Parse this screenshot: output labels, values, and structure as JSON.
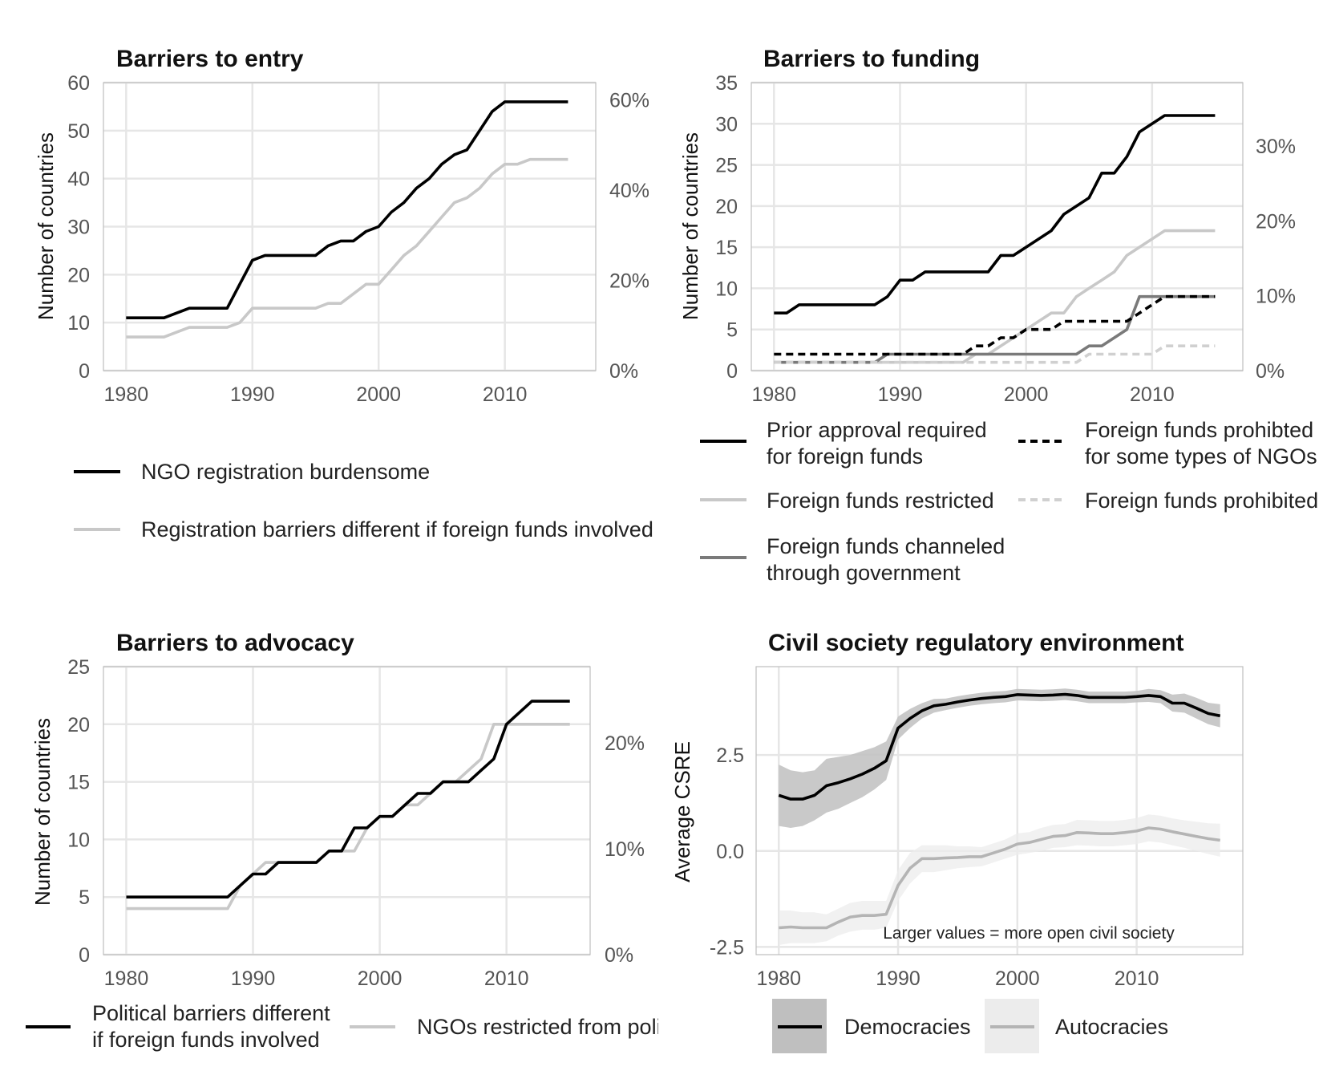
{
  "chart_data": [
    {
      "id": "entry",
      "type": "line",
      "title": "Barriers to entry",
      "ylabel": "Number of countries",
      "xlim": [
        1978.2,
        2017.2
      ],
      "ylim": [
        0,
        60
      ],
      "xticks": [
        1980,
        1990,
        2000,
        2010
      ],
      "yticks": [
        0,
        10,
        20,
        30,
        40,
        50,
        60
      ],
      "secondary_axis": {
        "labels": [
          "0%",
          "20%",
          "40%",
          "60%"
        ],
        "values": [
          0,
          18.8,
          37.6,
          56.4
        ]
      },
      "legend_position": "bottom",
      "series": [
        {
          "name": "NGO registration burdensome",
          "color": "#000000",
          "dash": "",
          "x": [
            1980,
            1981,
            1982,
            1983,
            1984,
            1985,
            1986,
            1987,
            1988,
            1989,
            1990,
            1991,
            1992,
            1993,
            1994,
            1995,
            1996,
            1997,
            1998,
            1999,
            2000,
            2001,
            2002,
            2003,
            2004,
            2005,
            2006,
            2007,
            2008,
            2009,
            2010,
            2011,
            2012,
            2013,
            2014,
            2015
          ],
          "y": [
            11,
            11,
            11,
            11,
            12,
            13,
            13,
            13,
            13,
            18,
            23,
            24,
            24,
            24,
            24,
            24,
            26,
            27,
            27,
            29,
            30,
            33,
            35,
            38,
            40,
            43,
            45,
            46,
            50,
            54,
            56,
            56,
            56,
            56,
            56,
            56
          ]
        },
        {
          "name": "Registration barriers different if foreign funds involved",
          "color": "#c8c8c8",
          "dash": "",
          "x": [
            1980,
            1981,
            1982,
            1983,
            1984,
            1985,
            1986,
            1987,
            1988,
            1989,
            1990,
            1991,
            1992,
            1993,
            1994,
            1995,
            1996,
            1997,
            1998,
            1999,
            2000,
            2001,
            2002,
            2003,
            2004,
            2005,
            2006,
            2007,
            2008,
            2009,
            2010,
            2011,
            2012,
            2013,
            2014,
            2015
          ],
          "y": [
            7,
            7,
            7,
            7,
            8,
            9,
            9,
            9,
            9,
            10,
            13,
            13,
            13,
            13,
            13,
            13,
            14,
            14,
            16,
            18,
            18,
            21,
            24,
            26,
            29,
            32,
            35,
            36,
            38,
            41,
            43,
            43,
            44,
            44,
            44,
            44
          ]
        }
      ]
    },
    {
      "id": "funding",
      "type": "line",
      "title": "Barriers to funding",
      "ylabel": "Number of countries",
      "xlim": [
        1978.2,
        2017.2
      ],
      "ylim": [
        0,
        35
      ],
      "xticks": [
        1980,
        1990,
        2000,
        2010
      ],
      "yticks": [
        0,
        5,
        10,
        15,
        20,
        25,
        30,
        35
      ],
      "secondary_axis": {
        "labels": [
          "0%",
          "10%",
          "20%",
          "30%"
        ],
        "values": [
          0,
          9.1,
          18.2,
          27.3
        ]
      },
      "legend_position": "bottom",
      "series": [
        {
          "name": "Prior approval required\nfor foreign funds",
          "color": "#000000",
          "dash": "",
          "x": [
            1980,
            1981,
            1982,
            1983,
            1984,
            1985,
            1986,
            1987,
            1988,
            1989,
            1990,
            1991,
            1992,
            1993,
            1994,
            1995,
            1996,
            1997,
            1998,
            1999,
            2000,
            2001,
            2002,
            2003,
            2004,
            2005,
            2006,
            2007,
            2008,
            2009,
            2010,
            2011,
            2012,
            2013,
            2014,
            2015
          ],
          "y": [
            7,
            7,
            8,
            8,
            8,
            8,
            8,
            8,
            8,
            9,
            11,
            11,
            12,
            12,
            12,
            12,
            12,
            12,
            14,
            14,
            15,
            16,
            17,
            19,
            20,
            21,
            24,
            24,
            26,
            29,
            30,
            31,
            31,
            31,
            31,
            31
          ]
        },
        {
          "name": "Foreign funds restricted",
          "color": "#c8c8c8",
          "dash": "",
          "x": [
            1980,
            1995,
            1996,
            1997,
            1998,
            1999,
            2000,
            2001,
            2002,
            2003,
            2004,
            2005,
            2006,
            2007,
            2008,
            2009,
            2010,
            2011,
            2012,
            2013,
            2014,
            2015
          ],
          "y": [
            1,
            1,
            2,
            2,
            3,
            4,
            5,
            6,
            7,
            7,
            9,
            10,
            11,
            12,
            14,
            15,
            16,
            17,
            17,
            17,
            17,
            17
          ]
        },
        {
          "name": "Foreign funds channeled\nthrough government",
          "color": "#7a7a7a",
          "dash": "",
          "x": [
            1980,
            1988,
            1989,
            2004,
            2005,
            2006,
            2007,
            2008,
            2009,
            2015
          ],
          "y": [
            1,
            1,
            2,
            2,
            3,
            3,
            4,
            5,
            9,
            9
          ]
        },
        {
          "name": "Foreign funds prohibted\nfor some types of NGOs",
          "color": "#000000",
          "dash": "9,6",
          "x": [
            1980,
            1995,
            1996,
            1997,
            1998,
            1999,
            2000,
            2001,
            2002,
            2003,
            2004,
            2005,
            2006,
            2007,
            2008,
            2009,
            2010,
            2011,
            2012,
            2013,
            2014,
            2015
          ],
          "y": [
            2,
            2,
            3,
            3,
            4,
            4,
            5,
            5,
            5,
            6,
            6,
            6,
            6,
            6,
            6,
            7,
            8,
            9,
            9,
            9,
            9,
            9
          ]
        },
        {
          "name": "Foreign funds prohibited",
          "color": "#d0d0d0",
          "dash": "9,6",
          "x": [
            1980,
            2004,
            2005,
            2006,
            2007,
            2008,
            2009,
            2010,
            2011,
            2012,
            2013,
            2014,
            2015
          ],
          "y": [
            1,
            1,
            2,
            2,
            2,
            2,
            2,
            2,
            3,
            3,
            3,
            3,
            3
          ]
        }
      ]
    },
    {
      "id": "advocacy",
      "type": "line",
      "title": "Barriers to advocacy",
      "ylabel": "Number of countries",
      "xlim": [
        1978.2,
        2016.6
      ],
      "ylim": [
        0,
        25
      ],
      "xticks": [
        1980,
        1990,
        2000,
        2010
      ],
      "yticks": [
        0,
        5,
        10,
        15,
        20,
        25
      ],
      "secondary_axis": {
        "labels": [
          "0%",
          "10%",
          "20%"
        ],
        "values": [
          0,
          9.2,
          18.4
        ]
      },
      "legend_position": "bottom",
      "series": [
        {
          "name": "Political barriers different\nif foreign funds involved",
          "color": "#000000",
          "dash": "",
          "x": [
            1980,
            1981,
            1982,
            1983,
            1984,
            1985,
            1986,
            1987,
            1988,
            1989,
            1990,
            1991,
            1992,
            1993,
            1994,
            1995,
            1996,
            1997,
            1998,
            1999,
            2000,
            2001,
            2002,
            2003,
            2004,
            2005,
            2006,
            2007,
            2008,
            2009,
            2010,
            2011,
            2012,
            2013,
            2014,
            2015
          ],
          "y": [
            5,
            5,
            5,
            5,
            5,
            5,
            5,
            5,
            5,
            6,
            7,
            7,
            8,
            8,
            8,
            8,
            9,
            9,
            11,
            11,
            12,
            12,
            13,
            14,
            14,
            15,
            15,
            15,
            16,
            17,
            20,
            21,
            22,
            22,
            22,
            22
          ]
        },
        {
          "name": "NGOs restricted from political activities",
          "color": "#c8c8c8",
          "dash": "",
          "x": [
            1980,
            1981,
            1982,
            1983,
            1984,
            1985,
            1986,
            1987,
            1988,
            1989,
            1990,
            1991,
            1992,
            1993,
            1994,
            1995,
            1996,
            1997,
            1998,
            1999,
            2000,
            2001,
            2002,
            2003,
            2004,
            2005,
            2006,
            2007,
            2008,
            2009,
            2010,
            2011,
            2012,
            2013,
            2014,
            2015
          ],
          "y": [
            4,
            4,
            4,
            4,
            4,
            4,
            4,
            4,
            4,
            6,
            7,
            8,
            8,
            8,
            8,
            8,
            9,
            9,
            9,
            11,
            12,
            12,
            13,
            13,
            14,
            15,
            15,
            16,
            17,
            20,
            20,
            20,
            20,
            20,
            20,
            20
          ]
        }
      ]
    },
    {
      "id": "csre",
      "type": "area",
      "title": "Civil society regulatory environment",
      "ylabel": "Average CSRE",
      "xlim": [
        1978.1,
        2018.9
      ],
      "ylim": [
        -2.7,
        4.8
      ],
      "xticks": [
        1980,
        1990,
        2000,
        2010
      ],
      "yticks": [
        -2.5,
        0.0,
        2.5
      ],
      "ytick_labels": [
        "-2.5",
        "0.0",
        "2.5"
      ],
      "annotation": "Larger values = more open civil society",
      "legend_position": "bottom",
      "series": [
        {
          "name": "Democracies",
          "color": "#000000",
          "band_color": "#bfbfbf",
          "x": [
            1980,
            1981,
            1982,
            1983,
            1984,
            1985,
            1986,
            1987,
            1988,
            1989,
            1990,
            1991,
            1992,
            1993,
            1994,
            1995,
            1996,
            1997,
            1998,
            1999,
            2000,
            2001,
            2002,
            2003,
            2004,
            2005,
            2006,
            2007,
            2008,
            2009,
            2010,
            2011,
            2012,
            2013,
            2014,
            2015,
            2016,
            2017
          ],
          "y": [
            1.45,
            1.35,
            1.35,
            1.45,
            1.7,
            1.78,
            1.88,
            2.0,
            2.15,
            2.35,
            3.2,
            3.45,
            3.65,
            3.78,
            3.82,
            3.88,
            3.93,
            3.97,
            4.0,
            4.02,
            4.07,
            4.06,
            4.05,
            4.06,
            4.08,
            4.05,
            4.0,
            4.0,
            4.0,
            4.0,
            4.02,
            4.05,
            4.02,
            3.85,
            3.85,
            3.72,
            3.58,
            3.52
          ],
          "lower": [
            0.65,
            0.6,
            0.65,
            0.8,
            1.0,
            1.1,
            1.25,
            1.4,
            1.6,
            1.85,
            2.9,
            3.2,
            3.45,
            3.6,
            3.67,
            3.73,
            3.78,
            3.82,
            3.85,
            3.87,
            3.92,
            3.91,
            3.9,
            3.91,
            3.93,
            3.9,
            3.85,
            3.85,
            3.85,
            3.85,
            3.87,
            3.88,
            3.85,
            3.63,
            3.6,
            3.45,
            3.3,
            3.22
          ],
          "upper": [
            2.25,
            2.1,
            2.05,
            2.1,
            2.4,
            2.45,
            2.5,
            2.6,
            2.7,
            2.85,
            3.5,
            3.7,
            3.85,
            3.96,
            3.97,
            4.03,
            4.08,
            4.12,
            4.15,
            4.17,
            4.22,
            4.21,
            4.2,
            4.21,
            4.23,
            4.2,
            4.15,
            4.15,
            4.15,
            4.15,
            4.17,
            4.22,
            4.19,
            4.07,
            4.1,
            3.99,
            3.86,
            3.82
          ]
        },
        {
          "name": "Autocracies",
          "color": "#b4b4b4",
          "band_color": "#ececec",
          "x": [
            1980,
            1981,
            1982,
            1983,
            1984,
            1985,
            1986,
            1987,
            1988,
            1989,
            1990,
            1991,
            1992,
            1993,
            1994,
            1995,
            1996,
            1997,
            1998,
            1999,
            2000,
            2001,
            2002,
            2003,
            2004,
            2005,
            2006,
            2007,
            2008,
            2009,
            2010,
            2011,
            2012,
            2013,
            2014,
            2015,
            2016,
            2017
          ],
          "y": [
            -2.0,
            -1.98,
            -2.0,
            -2.0,
            -2.0,
            -1.85,
            -1.72,
            -1.68,
            -1.68,
            -1.65,
            -0.9,
            -0.45,
            -0.2,
            -0.2,
            -0.18,
            -0.17,
            -0.15,
            -0.15,
            -0.05,
            0.05,
            0.18,
            0.22,
            0.3,
            0.38,
            0.4,
            0.48,
            0.47,
            0.45,
            0.45,
            0.48,
            0.52,
            0.6,
            0.57,
            0.5,
            0.44,
            0.38,
            0.32,
            0.28
          ],
          "lower": [
            -2.45,
            -2.4,
            -2.4,
            -2.4,
            -2.35,
            -2.2,
            -2.1,
            -2.05,
            -2.05,
            -2.0,
            -1.3,
            -0.85,
            -0.55,
            -0.55,
            -0.5,
            -0.45,
            -0.42,
            -0.4,
            -0.3,
            -0.2,
            -0.1,
            -0.05,
            0.0,
            0.08,
            0.1,
            0.15,
            0.14,
            0.12,
            0.12,
            0.15,
            0.18,
            0.25,
            0.22,
            0.15,
            0.08,
            0.0,
            -0.08,
            -0.15
          ],
          "upper": [
            -1.55,
            -1.55,
            -1.6,
            -1.6,
            -1.65,
            -1.5,
            -1.35,
            -1.3,
            -1.3,
            -1.3,
            -0.5,
            -0.05,
            0.15,
            0.15,
            0.15,
            0.12,
            0.12,
            0.1,
            0.2,
            0.3,
            0.46,
            0.49,
            0.6,
            0.68,
            0.7,
            0.81,
            0.8,
            0.78,
            0.78,
            0.81,
            0.86,
            0.95,
            0.92,
            0.85,
            0.8,
            0.76,
            0.72,
            0.71
          ]
        }
      ]
    }
  ]
}
